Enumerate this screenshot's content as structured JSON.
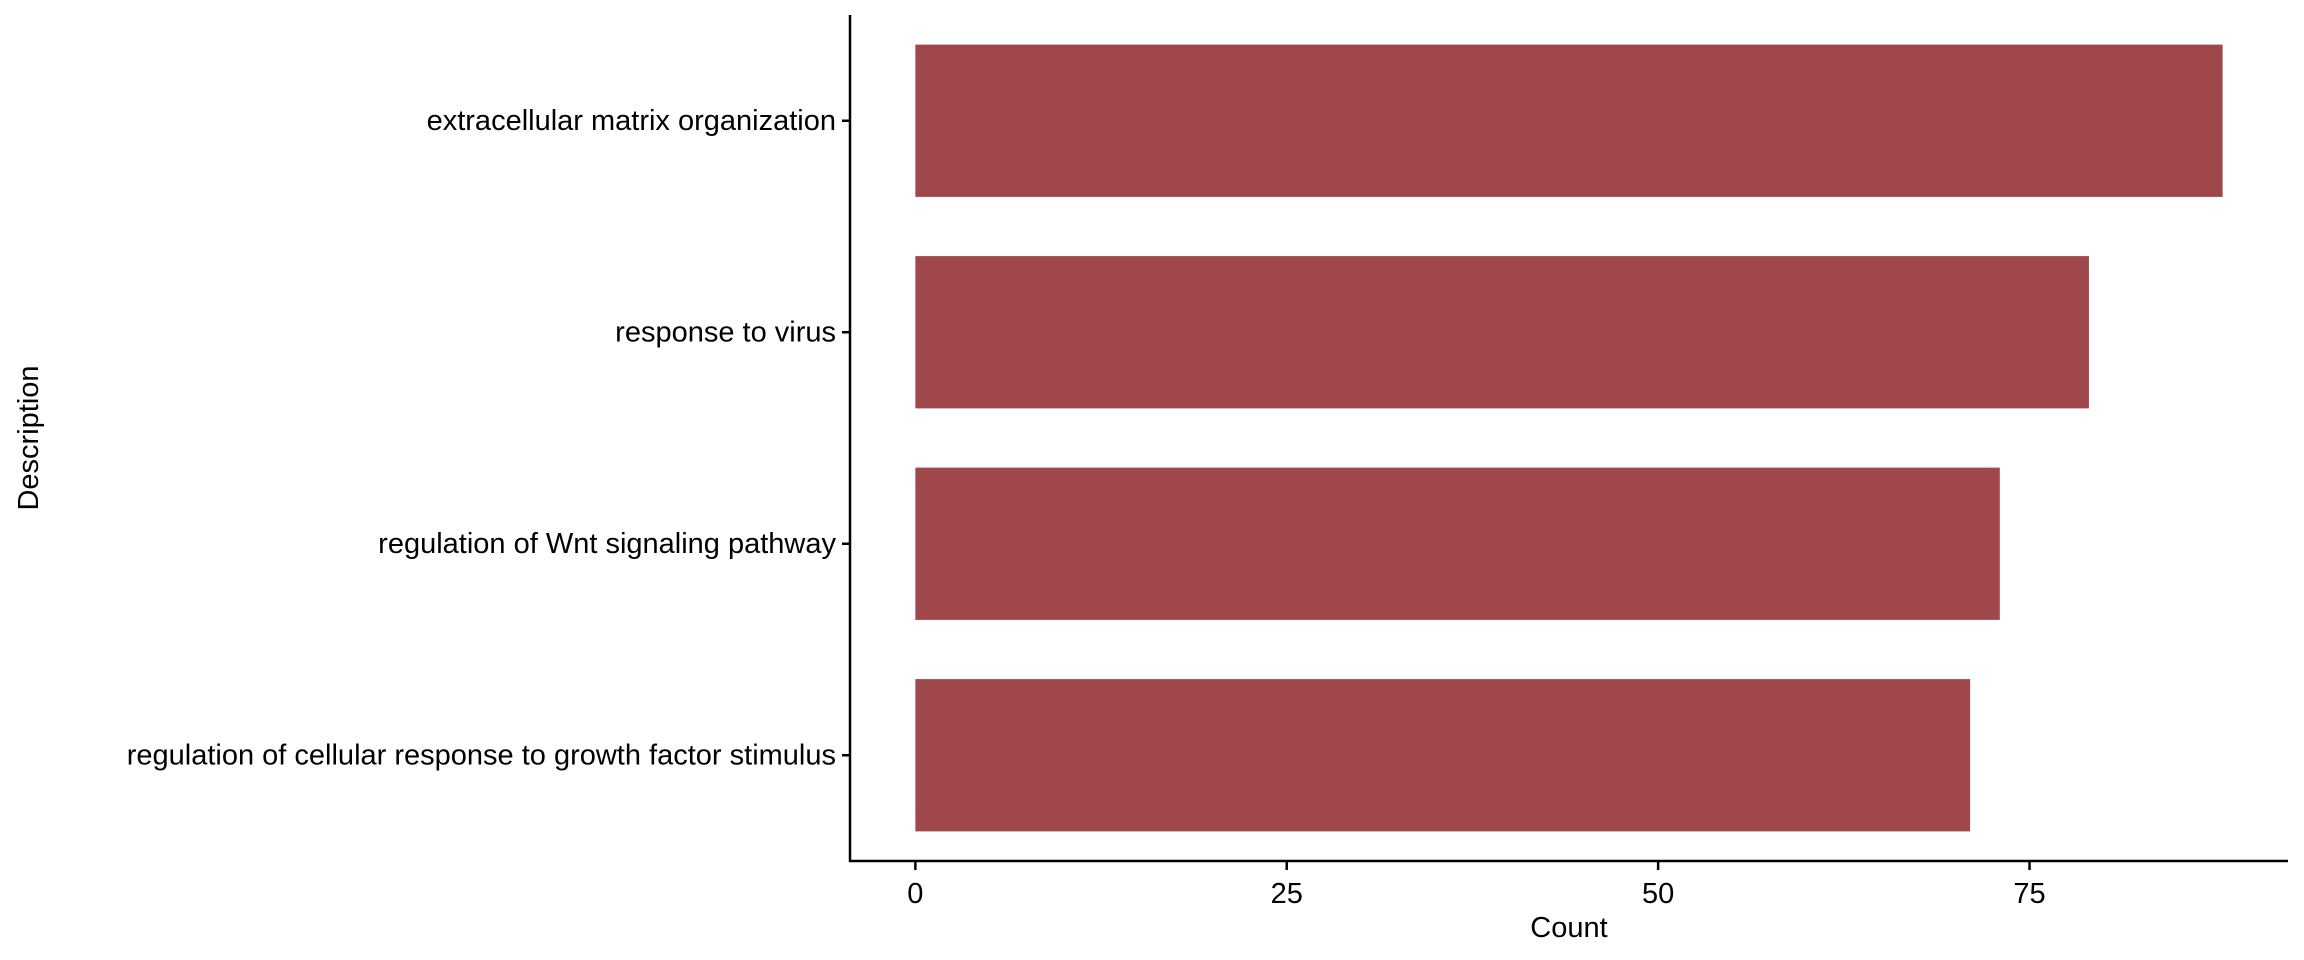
{
  "chart_data": {
    "type": "bar",
    "orientation": "horizontal",
    "categories": [
      "extracellular matrix organization",
      "response to virus",
      "regulation of Wnt signaling pathway",
      "regulation of cellular response to growth factor stimulus"
    ],
    "values": [
      88,
      79,
      73,
      71
    ],
    "xlabel": "Count",
    "ylabel": "Description",
    "xticks": [
      0,
      25,
      50,
      75
    ],
    "xlim": [
      -4.4,
      92.4
    ],
    "grid": false,
    "legend": "none",
    "bar_color": "#A0474C"
  }
}
